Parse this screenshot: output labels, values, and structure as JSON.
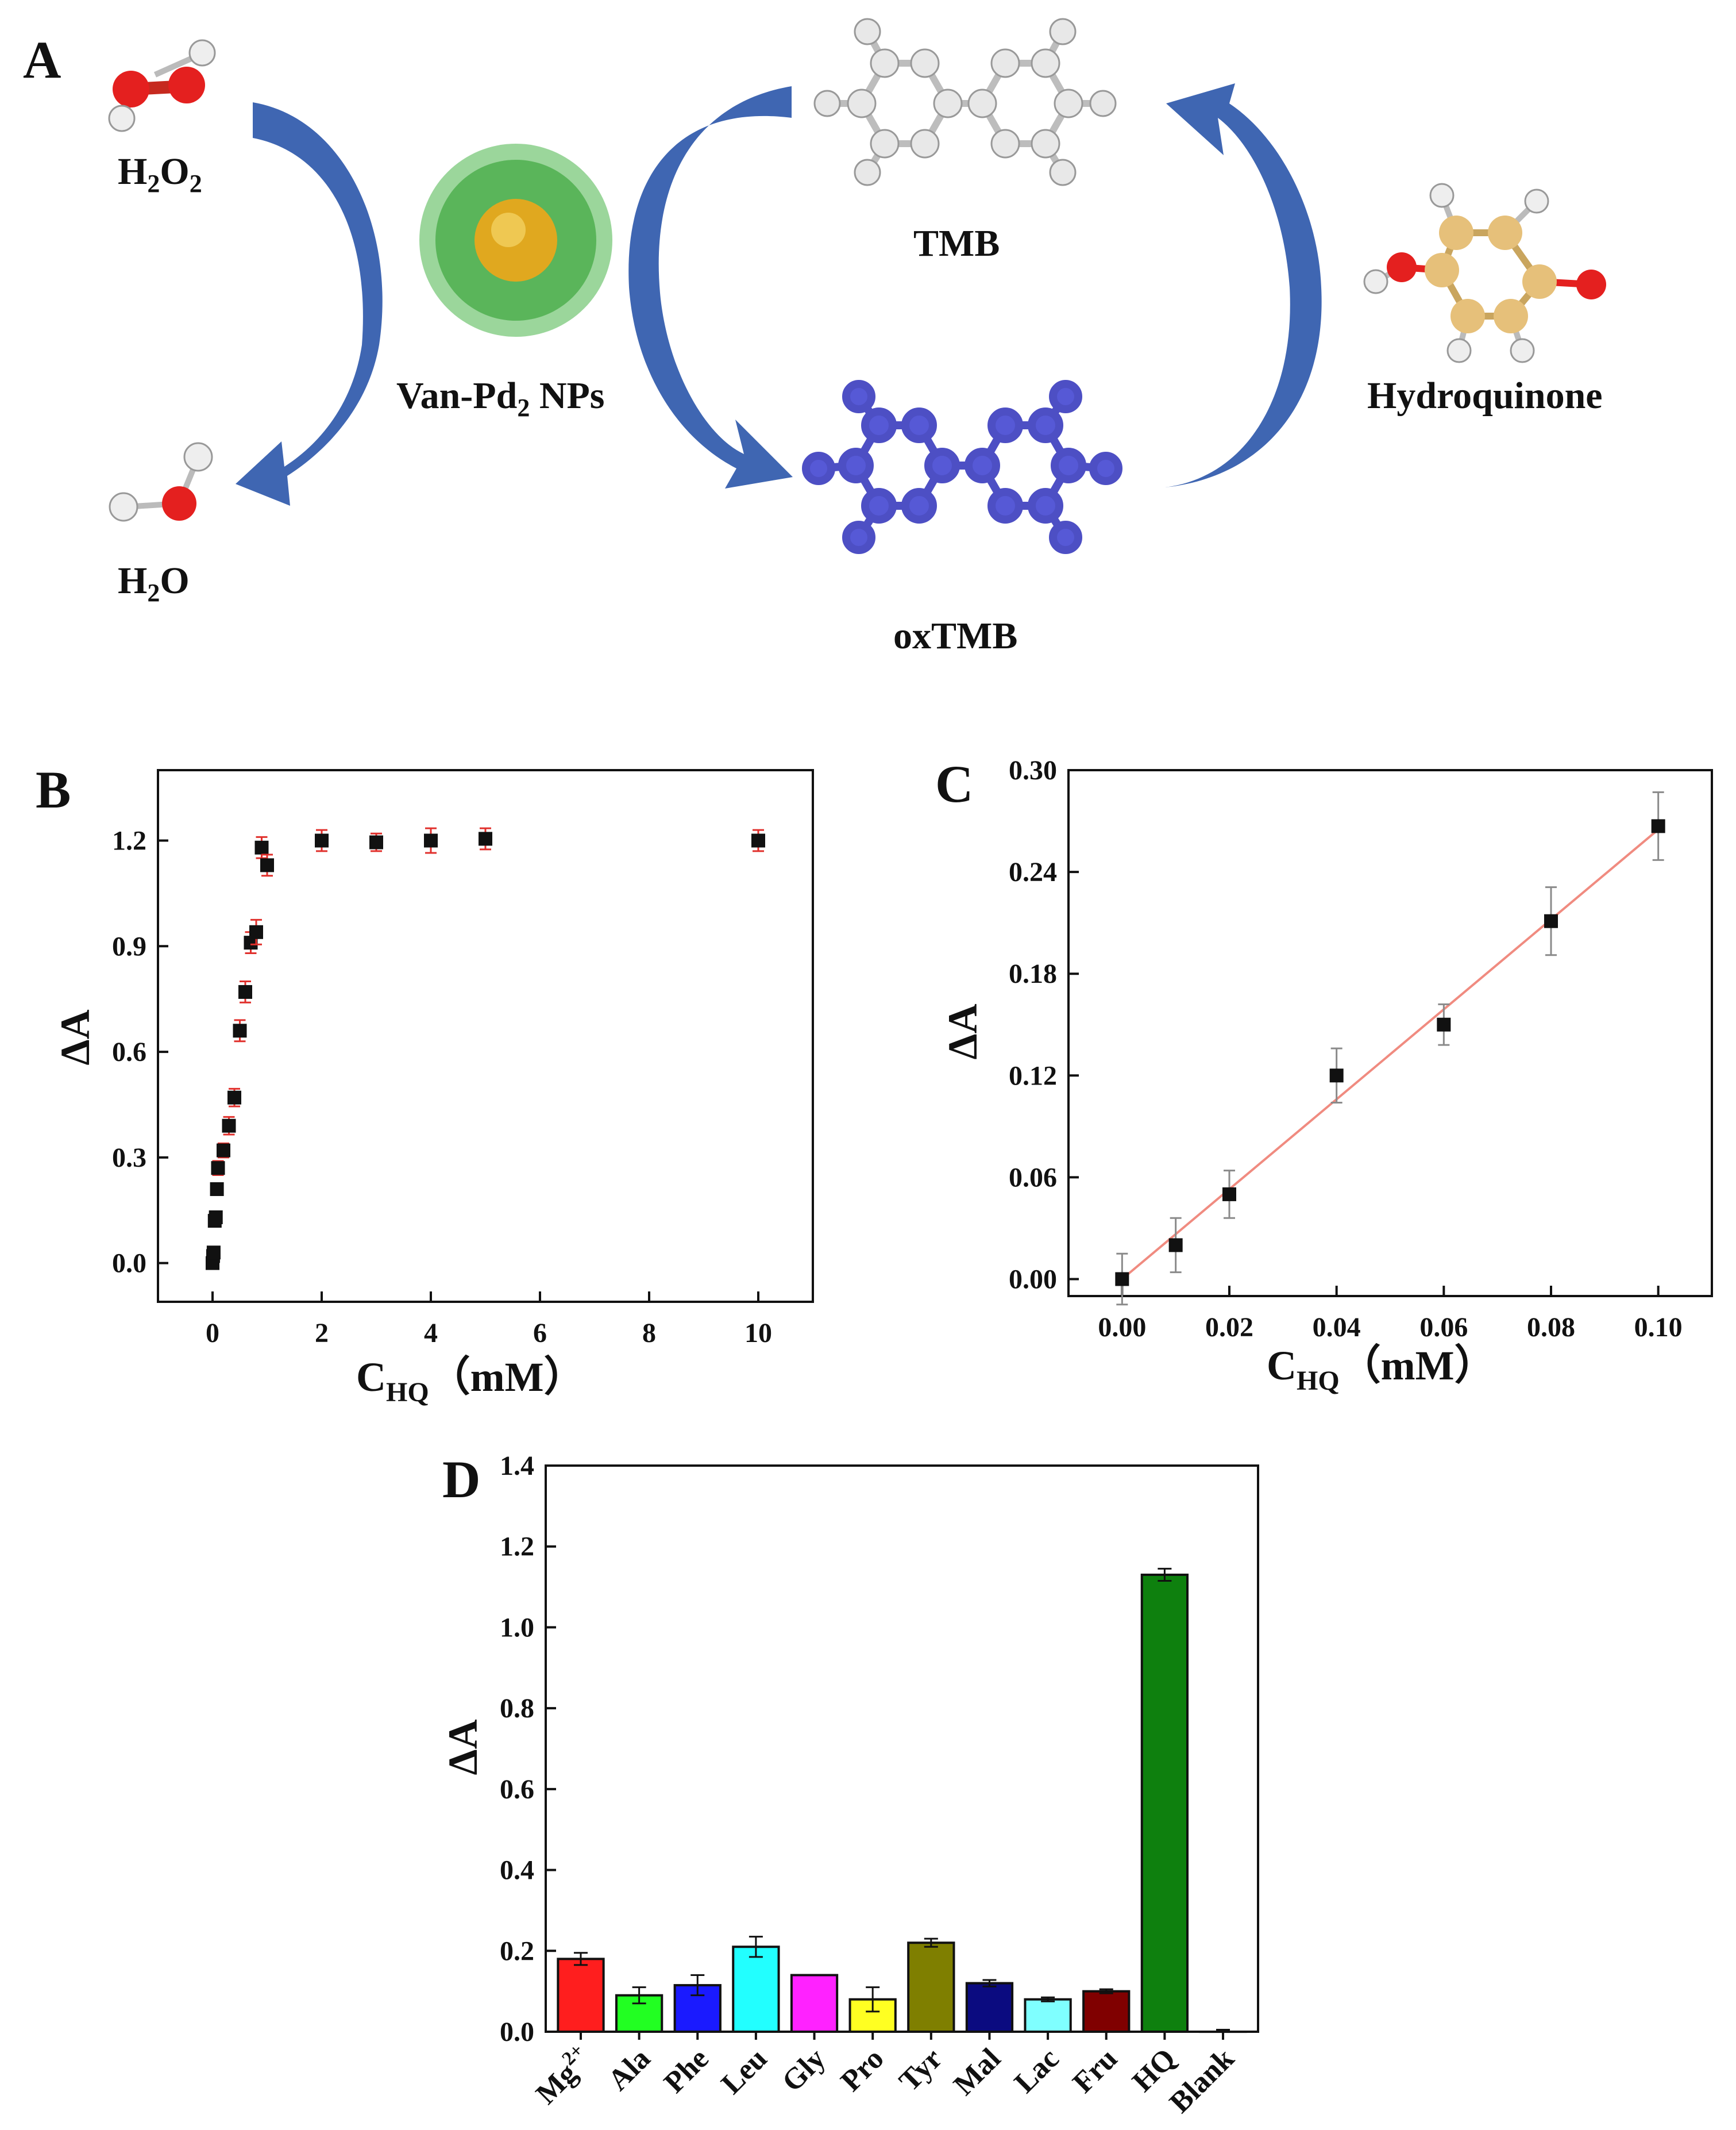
{
  "panel_a": {
    "letter": "A",
    "h2o2_label": "H₂O₂",
    "h2o_label": "H₂O",
    "nps_label": "Van-Pd₂ NPs",
    "tmb_label": "TMB",
    "oxtmb_label": "oxTMB",
    "hq_label": "Hydroquinone",
    "colors": {
      "arrow": "#3f66b2",
      "oxygen": "#e4201f",
      "hydrogen": "#eeeeee",
      "carbon_tmb": "#e8e8e8",
      "oxtmb": "#5659d6",
      "hq_carbon": "#e6c07a",
      "nanoparticle_shell": "#49b549",
      "nanoparticle_core": "#e0a81f"
    }
  },
  "chart_data": [
    {
      "panel": "B",
      "type": "scatter",
      "title": "",
      "xlabel_main": "C",
      "xlabel_sub": "HQ",
      "xlabel_unit": "（mM）",
      "ylabel": "ΔA",
      "xlim": [
        -1,
        11
      ],
      "ylim": [
        -0.11,
        1.4
      ],
      "xticks": [
        0,
        2,
        4,
        6,
        8,
        10
      ],
      "xtick_labels": [
        "0",
        "2",
        "4",
        "6",
        "8",
        "10"
      ],
      "yticks": [
        0.0,
        0.3,
        0.6,
        0.9,
        1.2
      ],
      "ytick_labels": [
        "0.0",
        "0.3",
        "0.6",
        "0.9",
        "1.2"
      ],
      "marker_color": "#111111",
      "error_color": "#e0302c",
      "x": [
        0.0,
        0.01,
        0.02,
        0.04,
        0.06,
        0.08,
        0.1,
        0.2,
        0.3,
        0.4,
        0.5,
        0.6,
        0.7,
        0.8,
        0.9,
        1.0,
        2.0,
        3.0,
        4.0,
        5.0,
        10.0
      ],
      "y": [
        0.0,
        0.02,
        0.03,
        0.12,
        0.13,
        0.21,
        0.27,
        0.32,
        0.39,
        0.47,
        0.66,
        0.77,
        0.91,
        0.94,
        1.18,
        1.13,
        1.2,
        1.195,
        1.2,
        1.205,
        1.2
      ],
      "err": [
        0.015,
        0.015,
        0.015,
        0.015,
        0.015,
        0.015,
        0.02,
        0.02,
        0.025,
        0.025,
        0.03,
        0.03,
        0.03,
        0.035,
        0.03,
        0.03,
        0.03,
        0.025,
        0.035,
        0.03,
        0.03
      ]
    },
    {
      "panel": "C",
      "type": "scatter",
      "title": "",
      "xlabel_main": "C",
      "xlabel_sub": "HQ",
      "xlabel_unit": "（mM）",
      "ylabel": "ΔA",
      "xlim": [
        -0.01,
        0.11
      ],
      "ylim": [
        -0.01,
        0.3
      ],
      "xticks": [
        0.0,
        0.02,
        0.04,
        0.06,
        0.08,
        0.1
      ],
      "xtick_labels": [
        "0.00",
        "0.02",
        "0.04",
        "0.06",
        "0.08",
        "0.10"
      ],
      "yticks": [
        0.0,
        0.06,
        0.12,
        0.18,
        0.24,
        0.3
      ],
      "ytick_labels": [
        "0.00",
        "0.06",
        "0.12",
        "0.18",
        "0.24",
        "0.30"
      ],
      "marker_color": "#111111",
      "error_color": "#8a8a8a",
      "fit_color": "#f08b80",
      "x": [
        0.0,
        0.01,
        0.02,
        0.04,
        0.06,
        0.08,
        0.1
      ],
      "y": [
        0.0,
        0.02,
        0.05,
        0.12,
        0.15,
        0.211,
        0.267
      ],
      "err": [
        0.015,
        0.016,
        0.014,
        0.016,
        0.012,
        0.02,
        0.02
      ],
      "fit": {
        "x0": 0.0,
        "y0": 0.0,
        "x1": 0.1,
        "y1": 0.265
      }
    },
    {
      "panel": "D",
      "type": "bar",
      "title": "",
      "xlabel": "",
      "ylabel": "ΔA",
      "ylim": [
        0.0,
        1.4
      ],
      "yticks": [
        0.0,
        0.2,
        0.4,
        0.6,
        0.8,
        1.0,
        1.2,
        1.4
      ],
      "ytick_labels": [
        "0.0",
        "0.2",
        "0.4",
        "0.6",
        "0.8",
        "1.0",
        "1.2",
        "1.4"
      ],
      "categories": [
        "Mg",
        "Ala",
        "Phe",
        "Leu",
        "Gly",
        "Pro",
        "Tyr",
        "Mal",
        "Lac",
        "Fru",
        "HQ",
        "Blank"
      ],
      "category_superscripts": [
        "2+",
        "",
        "",
        "",
        "",
        "",
        "",
        "",
        "",
        "",
        "",
        ""
      ],
      "values": [
        0.18,
        0.09,
        0.115,
        0.21,
        0.14,
        0.08,
        0.22,
        0.12,
        0.08,
        0.1,
        1.13,
        0.0
      ],
      "errors": [
        0.015,
        0.02,
        0.025,
        0.025,
        0.0,
        0.03,
        0.01,
        0.008,
        0.005,
        0.005,
        0.015,
        0.005
      ],
      "colors": [
        "#ff1e1e",
        "#22ff22",
        "#1a1aff",
        "#22ffff",
        "#ff22ff",
        "#ffff22",
        "#7f7f00",
        "#0b0b80",
        "#7fffff",
        "#800000",
        "#0e800e",
        "#ffffff"
      ]
    }
  ]
}
